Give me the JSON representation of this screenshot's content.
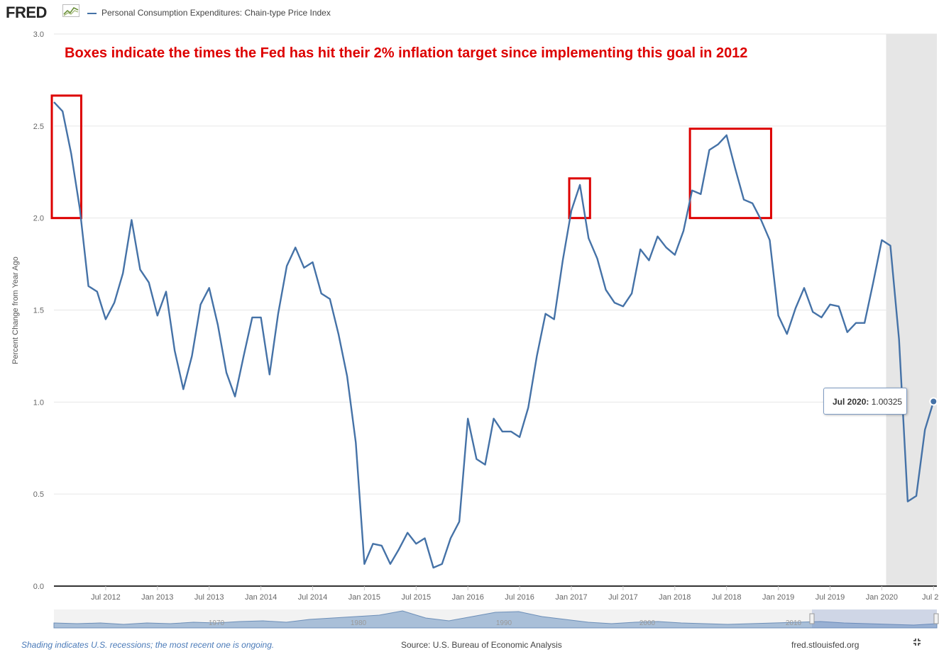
{
  "header": {
    "logo": "FRED",
    "logo_icon": "chart-icon",
    "legend_label": "Personal Consumption Expenditures: Chain-type Price Index"
  },
  "annotation": {
    "text": "Boxes indicate the times the Fed has hit their 2% inflation target since implementing this goal in 2012",
    "color": "#dd0000"
  },
  "tooltip": {
    "date": "Jul 2020:",
    "value": "1.00325"
  },
  "footer": {
    "note": "Shading indicates U.S. recessions; the most recent one is ongoing.",
    "source": "Source: U.S. Bureau of Economic Analysis",
    "site": "fred.stlouisfed.org",
    "fullscreen_icon": "fullscreen-icon"
  },
  "colors": {
    "series": "#4572a7",
    "boxes": "#dd0000",
    "recession_shade": "#e6e6e6",
    "grid": "#e6e6e6"
  },
  "navigator": {
    "labels": [
      "1970",
      "1980",
      "1990",
      "2000",
      "2010"
    ]
  },
  "chart_data": {
    "type": "line",
    "ylabel": "Percent Change from Year Ago",
    "ylim": [
      0,
      3
    ],
    "yticks": [
      "0.0",
      "0.5",
      "1.0",
      "1.5",
      "2.0",
      "2.5",
      "3.0"
    ],
    "xticks": [
      "Jul 2012",
      "Jan 2013",
      "Jul 2013",
      "Jan 2014",
      "Jul 2014",
      "Jan 2015",
      "Jul 2015",
      "Jan 2016",
      "Jul 2016",
      "Jan 2017",
      "Jul 2017",
      "Jan 2018",
      "Jul 2018",
      "Jan 2019",
      "Jul 2019",
      "Jan 2020",
      "Jul 2..."
    ],
    "grid": true,
    "recession_shading": {
      "start": "2020-02",
      "end": "2020-07"
    },
    "highlight_boxes": [
      {
        "start": "2012-01",
        "end": "2012-04",
        "ymin": 2.0,
        "ymax": 2.65
      },
      {
        "start": "2017-01",
        "end": "2017-03",
        "ymin": 2.0,
        "ymax": 2.2
      },
      {
        "start": "2018-03",
        "end": "2018-12",
        "ymin": 2.0,
        "ymax": 2.47
      }
    ],
    "series": [
      {
        "x": [
          "2012-01",
          "2012-02",
          "2012-03",
          "2012-04",
          "2012-05",
          "2012-06",
          "2012-07",
          "2012-08",
          "2012-09",
          "2012-10",
          "2012-11",
          "2012-12",
          "2013-01",
          "2013-02",
          "2013-03",
          "2013-04",
          "2013-05",
          "2013-06",
          "2013-07",
          "2013-08",
          "2013-09",
          "2013-10",
          "2013-11",
          "2013-12",
          "2014-01",
          "2014-02",
          "2014-03",
          "2014-04",
          "2014-05",
          "2014-06",
          "2014-07",
          "2014-08",
          "2014-09",
          "2014-10",
          "2014-11",
          "2014-12",
          "2015-01",
          "2015-02",
          "2015-03",
          "2015-04",
          "2015-05",
          "2015-06",
          "2015-07",
          "2015-08",
          "2015-09",
          "2015-10",
          "2015-11",
          "2015-12",
          "2016-01",
          "2016-02",
          "2016-03",
          "2016-04",
          "2016-05",
          "2016-06",
          "2016-07",
          "2016-08",
          "2016-09",
          "2016-10",
          "2016-11",
          "2016-12",
          "2017-01",
          "2017-02",
          "2017-03",
          "2017-04",
          "2017-05",
          "2017-06",
          "2017-07",
          "2017-08",
          "2017-09",
          "2017-10",
          "2017-11",
          "2017-12",
          "2018-01",
          "2018-02",
          "2018-03",
          "2018-04",
          "2018-05",
          "2018-06",
          "2018-07",
          "2018-08",
          "2018-09",
          "2018-10",
          "2018-11",
          "2018-12",
          "2019-01",
          "2019-02",
          "2019-03",
          "2019-04",
          "2019-05",
          "2019-06",
          "2019-07",
          "2019-08",
          "2019-09",
          "2019-10",
          "2019-11",
          "2019-12",
          "2020-01",
          "2020-02",
          "2020-03",
          "2020-04",
          "2020-05",
          "2020-06",
          "2020-07"
        ],
        "values": [
          2.63,
          2.58,
          2.35,
          2.05,
          1.63,
          1.6,
          1.45,
          1.54,
          1.7,
          1.99,
          1.72,
          1.65,
          1.47,
          1.6,
          1.28,
          1.07,
          1.25,
          1.53,
          1.62,
          1.42,
          1.16,
          1.03,
          1.25,
          1.46,
          1.46,
          1.15,
          1.48,
          1.74,
          1.84,
          1.73,
          1.76,
          1.59,
          1.56,
          1.37,
          1.14,
          0.78,
          0.12,
          0.23,
          0.22,
          0.12,
          0.2,
          0.29,
          0.23,
          0.26,
          0.1,
          0.12,
          0.26,
          0.35,
          0.91,
          0.69,
          0.66,
          0.91,
          0.84,
          0.84,
          0.81,
          0.97,
          1.25,
          1.48,
          1.45,
          1.77,
          2.04,
          2.18,
          1.89,
          1.78,
          1.61,
          1.54,
          1.52,
          1.59,
          1.83,
          1.77,
          1.9,
          1.84,
          1.8,
          1.93,
          2.15,
          2.13,
          2.37,
          2.4,
          2.45,
          2.27,
          2.1,
          2.08,
          1.99,
          1.88,
          1.47,
          1.37,
          1.51,
          1.62,
          1.49,
          1.46,
          1.53,
          1.52,
          1.38,
          1.43,
          1.43,
          1.65,
          1.88,
          1.85,
          1.34,
          0.46,
          0.49,
          0.85,
          1.00325
        ]
      }
    ]
  }
}
